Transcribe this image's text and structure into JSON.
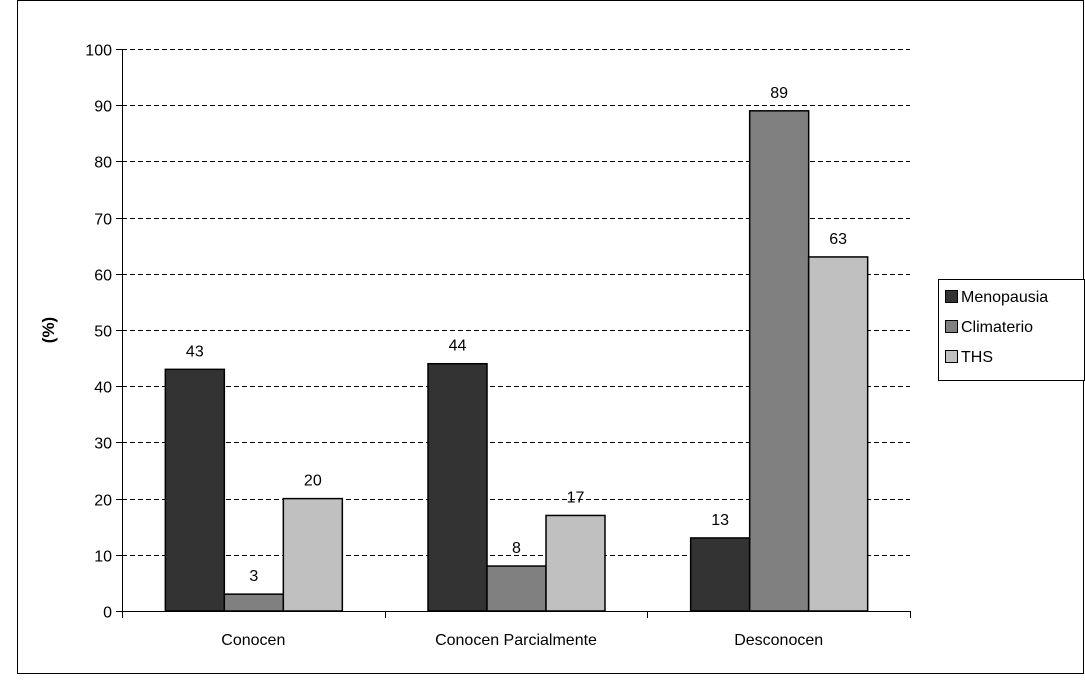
{
  "chart_data": {
    "type": "bar",
    "title": "",
    "xlabel": "",
    "ylabel": "(%)",
    "ylim": [
      0,
      100
    ],
    "yticks": [
      "0",
      "10",
      "20",
      "30",
      "40",
      "50",
      "60",
      "70",
      "80",
      "90",
      "100"
    ],
    "grid": true,
    "legend_position": "right",
    "categories": [
      "Conocen",
      "Conocen Parcialmente",
      "Desconocen"
    ],
    "series": [
      {
        "name": "Menopausia",
        "color": "#333333",
        "values": [
          43,
          44,
          13
        ]
      },
      {
        "name": "Climaterio",
        "color": "#808080",
        "values": [
          3,
          8,
          89
        ]
      },
      {
        "name": "THS",
        "color": "#c0c0c0",
        "values": [
          20,
          17,
          63
        ]
      }
    ]
  }
}
